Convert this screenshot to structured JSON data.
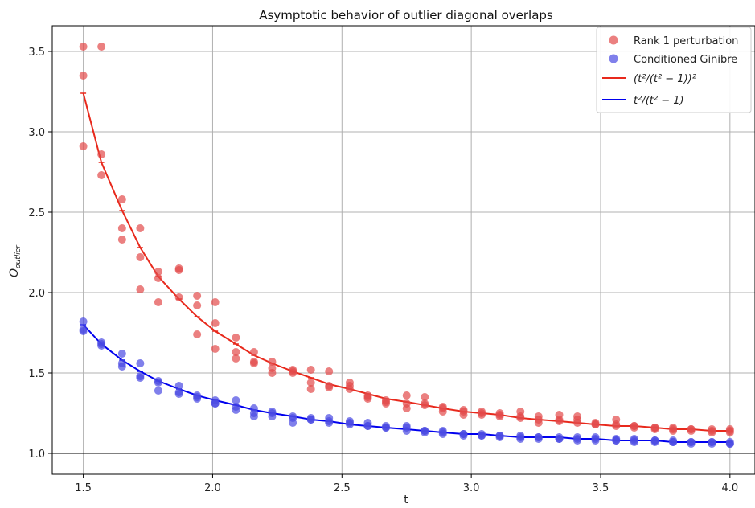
{
  "chart_data": {
    "type": "scatter",
    "title": "Asymptotic behavior of outlier diagonal overlaps",
    "xlabel": "t",
    "ylabel": "O",
    "ylabel_subscript": "outlier",
    "xlim": [
      1.38,
      4.1
    ],
    "ylim": [
      0.87,
      3.66
    ],
    "xticks": [
      "1.5",
      "2.0",
      "2.5",
      "3.0",
      "3.5",
      "4.0"
    ],
    "yticks": [
      "1.0",
      "1.5",
      "2.0",
      "2.5",
      "3.0",
      "3.5"
    ],
    "grid": true,
    "legend_position": "top-right",
    "legend": [
      {
        "label": "Rank 1 perturbation",
        "kind": "marker",
        "color": "#e34a4a"
      },
      {
        "label": "Conditioned Ginibre",
        "kind": "marker",
        "color": "#4a4ae3"
      },
      {
        "label": "(t²/(t² − 1))²",
        "kind": "line",
        "color": "#e8291c"
      },
      {
        "label": "t²/(t² − 1)",
        "kind": "line",
        "color": "#0000ee"
      }
    ],
    "series": [
      {
        "name": "Rank 1 perturbation",
        "kind": "scatter",
        "color": "#e34a4a",
        "points": [
          [
            1.5,
            3.53
          ],
          [
            1.5,
            3.35
          ],
          [
            1.5,
            2.91
          ],
          [
            1.57,
            3.53
          ],
          [
            1.57,
            2.86
          ],
          [
            1.57,
            2.73
          ],
          [
            1.65,
            2.58
          ],
          [
            1.65,
            2.4
          ],
          [
            1.65,
            2.33
          ],
          [
            1.72,
            2.4
          ],
          [
            1.72,
            2.22
          ],
          [
            1.72,
            2.02
          ],
          [
            1.79,
            2.13
          ],
          [
            1.79,
            2.09
          ],
          [
            1.79,
            1.94
          ],
          [
            1.87,
            2.15
          ],
          [
            1.87,
            2.14
          ],
          [
            1.87,
            1.97
          ],
          [
            1.94,
            1.98
          ],
          [
            1.94,
            1.92
          ],
          [
            1.94,
            1.74
          ],
          [
            2.01,
            1.94
          ],
          [
            2.01,
            1.81
          ],
          [
            2.01,
            1.65
          ],
          [
            2.09,
            1.72
          ],
          [
            2.09,
            1.63
          ],
          [
            2.09,
            1.59
          ],
          [
            2.16,
            1.63
          ],
          [
            2.16,
            1.57
          ],
          [
            2.16,
            1.56
          ],
          [
            2.23,
            1.57
          ],
          [
            2.23,
            1.53
          ],
          [
            2.23,
            1.5
          ],
          [
            2.31,
            1.52
          ],
          [
            2.31,
            1.51
          ],
          [
            2.31,
            1.5
          ],
          [
            2.38,
            1.52
          ],
          [
            2.38,
            1.44
          ],
          [
            2.38,
            1.4
          ],
          [
            2.45,
            1.51
          ],
          [
            2.45,
            1.42
          ],
          [
            2.45,
            1.41
          ],
          [
            2.53,
            1.44
          ],
          [
            2.53,
            1.42
          ],
          [
            2.53,
            1.4
          ],
          [
            2.6,
            1.36
          ],
          [
            2.6,
            1.35
          ],
          [
            2.6,
            1.34
          ],
          [
            2.67,
            1.33
          ],
          [
            2.67,
            1.32
          ],
          [
            2.67,
            1.31
          ],
          [
            2.75,
            1.36
          ],
          [
            2.75,
            1.31
          ],
          [
            2.75,
            1.28
          ],
          [
            2.82,
            1.35
          ],
          [
            2.82,
            1.31
          ],
          [
            2.82,
            1.3
          ],
          [
            2.89,
            1.29
          ],
          [
            2.89,
            1.28
          ],
          [
            2.89,
            1.26
          ],
          [
            2.97,
            1.27
          ],
          [
            2.97,
            1.26
          ],
          [
            2.97,
            1.24
          ],
          [
            3.04,
            1.26
          ],
          [
            3.04,
            1.25
          ],
          [
            3.04,
            1.24
          ],
          [
            3.11,
            1.25
          ],
          [
            3.11,
            1.24
          ],
          [
            3.11,
            1.23
          ],
          [
            3.19,
            1.26
          ],
          [
            3.19,
            1.23
          ],
          [
            3.19,
            1.22
          ],
          [
            3.26,
            1.23
          ],
          [
            3.26,
            1.21
          ],
          [
            3.26,
            1.19
          ],
          [
            3.34,
            1.24
          ],
          [
            3.34,
            1.21
          ],
          [
            3.34,
            1.2
          ],
          [
            3.41,
            1.23
          ],
          [
            3.41,
            1.21
          ],
          [
            3.41,
            1.19
          ],
          [
            3.48,
            1.19
          ],
          [
            3.48,
            1.18
          ],
          [
            3.48,
            1.18
          ],
          [
            3.56,
            1.21
          ],
          [
            3.56,
            1.18
          ],
          [
            3.56,
            1.17
          ],
          [
            3.63,
            1.17
          ],
          [
            3.63,
            1.17
          ],
          [
            3.63,
            1.16
          ],
          [
            3.71,
            1.16
          ],
          [
            3.71,
            1.16
          ],
          [
            3.71,
            1.15
          ],
          [
            3.78,
            1.16
          ],
          [
            3.78,
            1.15
          ],
          [
            3.78,
            1.14
          ],
          [
            3.85,
            1.15
          ],
          [
            3.85,
            1.15
          ],
          [
            3.85,
            1.14
          ],
          [
            3.93,
            1.15
          ],
          [
            3.93,
            1.14
          ],
          [
            3.93,
            1.13
          ],
          [
            4.0,
            1.15
          ],
          [
            4.0,
            1.14
          ],
          [
            4.0,
            1.13
          ]
        ]
      },
      {
        "name": "Conditioned Ginibre",
        "kind": "scatter",
        "color": "#4a4ae3",
        "points": [
          [
            1.5,
            1.82
          ],
          [
            1.5,
            1.77
          ],
          [
            1.5,
            1.76
          ],
          [
            1.57,
            1.69
          ],
          [
            1.57,
            1.68
          ],
          [
            1.57,
            1.67
          ],
          [
            1.65,
            1.62
          ],
          [
            1.65,
            1.56
          ],
          [
            1.65,
            1.54
          ],
          [
            1.72,
            1.56
          ],
          [
            1.72,
            1.48
          ],
          [
            1.72,
            1.47
          ],
          [
            1.79,
            1.45
          ],
          [
            1.79,
            1.44
          ],
          [
            1.79,
            1.39
          ],
          [
            1.87,
            1.42
          ],
          [
            1.87,
            1.38
          ],
          [
            1.87,
            1.37
          ],
          [
            1.94,
            1.36
          ],
          [
            1.94,
            1.35
          ],
          [
            1.94,
            1.34
          ],
          [
            2.01,
            1.33
          ],
          [
            2.01,
            1.31
          ],
          [
            2.01,
            1.31
          ],
          [
            2.09,
            1.33
          ],
          [
            2.09,
            1.29
          ],
          [
            2.09,
            1.27
          ],
          [
            2.16,
            1.28
          ],
          [
            2.16,
            1.25
          ],
          [
            2.16,
            1.23
          ],
          [
            2.23,
            1.26
          ],
          [
            2.23,
            1.25
          ],
          [
            2.23,
            1.23
          ],
          [
            2.31,
            1.23
          ],
          [
            2.31,
            1.22
          ],
          [
            2.31,
            1.19
          ],
          [
            2.38,
            1.22
          ],
          [
            2.38,
            1.21
          ],
          [
            2.38,
            1.21
          ],
          [
            2.45,
            1.22
          ],
          [
            2.45,
            1.2
          ],
          [
            2.45,
            1.19
          ],
          [
            2.53,
            1.2
          ],
          [
            2.53,
            1.19
          ],
          [
            2.53,
            1.18
          ],
          [
            2.6,
            1.19
          ],
          [
            2.6,
            1.17
          ],
          [
            2.6,
            1.17
          ],
          [
            2.67,
            1.17
          ],
          [
            2.67,
            1.16
          ],
          [
            2.67,
            1.16
          ],
          [
            2.75,
            1.17
          ],
          [
            2.75,
            1.16
          ],
          [
            2.75,
            1.14
          ],
          [
            2.82,
            1.14
          ],
          [
            2.82,
            1.14
          ],
          [
            2.82,
            1.13
          ],
          [
            2.89,
            1.14
          ],
          [
            2.89,
            1.13
          ],
          [
            2.89,
            1.12
          ],
          [
            2.97,
            1.12
          ],
          [
            2.97,
            1.12
          ],
          [
            2.97,
            1.11
          ],
          [
            3.04,
            1.12
          ],
          [
            3.04,
            1.11
          ],
          [
            3.04,
            1.11
          ],
          [
            3.11,
            1.11
          ],
          [
            3.11,
            1.11
          ],
          [
            3.11,
            1.1
          ],
          [
            3.19,
            1.11
          ],
          [
            3.19,
            1.1
          ],
          [
            3.19,
            1.09
          ],
          [
            3.26,
            1.1
          ],
          [
            3.26,
            1.1
          ],
          [
            3.26,
            1.09
          ],
          [
            3.34,
            1.1
          ],
          [
            3.34,
            1.09
          ],
          [
            3.34,
            1.09
          ],
          [
            3.41,
            1.1
          ],
          [
            3.41,
            1.09
          ],
          [
            3.41,
            1.08
          ],
          [
            3.48,
            1.1
          ],
          [
            3.48,
            1.09
          ],
          [
            3.48,
            1.08
          ],
          [
            3.56,
            1.09
          ],
          [
            3.56,
            1.08
          ],
          [
            3.56,
            1.08
          ],
          [
            3.63,
            1.09
          ],
          [
            3.63,
            1.08
          ],
          [
            3.63,
            1.07
          ],
          [
            3.71,
            1.08
          ],
          [
            3.71,
            1.08
          ],
          [
            3.71,
            1.07
          ],
          [
            3.78,
            1.08
          ],
          [
            3.78,
            1.07
          ],
          [
            3.78,
            1.07
          ],
          [
            3.85,
            1.07
          ],
          [
            3.85,
            1.07
          ],
          [
            3.85,
            1.06
          ],
          [
            3.93,
            1.07
          ],
          [
            3.93,
            1.07
          ],
          [
            3.93,
            1.06
          ],
          [
            4.0,
            1.07
          ],
          [
            4.0,
            1.06
          ],
          [
            4.0,
            1.06
          ]
        ]
      },
      {
        "name": "(t²/(t² − 1))²",
        "kind": "line",
        "color": "#e8291c",
        "x": [
          1.5,
          1.57,
          1.65,
          1.72,
          1.79,
          1.87,
          1.94,
          2.01,
          2.09,
          2.16,
          2.23,
          2.31,
          2.38,
          2.45,
          2.53,
          2.6,
          2.67,
          2.75,
          2.82,
          2.89,
          2.97,
          3.04,
          3.11,
          3.19,
          3.26,
          3.34,
          3.41,
          3.48,
          3.56,
          3.63,
          3.71,
          3.78,
          3.85,
          3.93,
          4.0
        ],
        "y": [
          3.24,
          2.81,
          2.51,
          2.28,
          2.1,
          1.96,
          1.85,
          1.76,
          1.68,
          1.61,
          1.56,
          1.51,
          1.47,
          1.43,
          1.4,
          1.37,
          1.34,
          1.32,
          1.3,
          1.28,
          1.26,
          1.25,
          1.24,
          1.22,
          1.21,
          1.2,
          1.19,
          1.18,
          1.17,
          1.17,
          1.16,
          1.15,
          1.15,
          1.14,
          1.14
        ]
      },
      {
        "name": "t²/(t² − 1)",
        "kind": "line",
        "color": "#0000ee",
        "x": [
          1.5,
          1.57,
          1.65,
          1.72,
          1.79,
          1.87,
          1.94,
          2.01,
          2.09,
          2.16,
          2.23,
          2.31,
          2.38,
          2.45,
          2.53,
          2.6,
          2.67,
          2.75,
          2.82,
          2.89,
          2.97,
          3.04,
          3.11,
          3.19,
          3.26,
          3.34,
          3.41,
          3.48,
          3.56,
          3.63,
          3.71,
          3.78,
          3.85,
          3.93,
          4.0
        ],
        "y": [
          1.8,
          1.68,
          1.58,
          1.51,
          1.45,
          1.4,
          1.36,
          1.33,
          1.3,
          1.27,
          1.25,
          1.23,
          1.21,
          1.2,
          1.18,
          1.17,
          1.16,
          1.15,
          1.14,
          1.13,
          1.12,
          1.12,
          1.11,
          1.1,
          1.1,
          1.1,
          1.09,
          1.09,
          1.08,
          1.08,
          1.08,
          1.07,
          1.07,
          1.07,
          1.07
        ]
      }
    ]
  }
}
